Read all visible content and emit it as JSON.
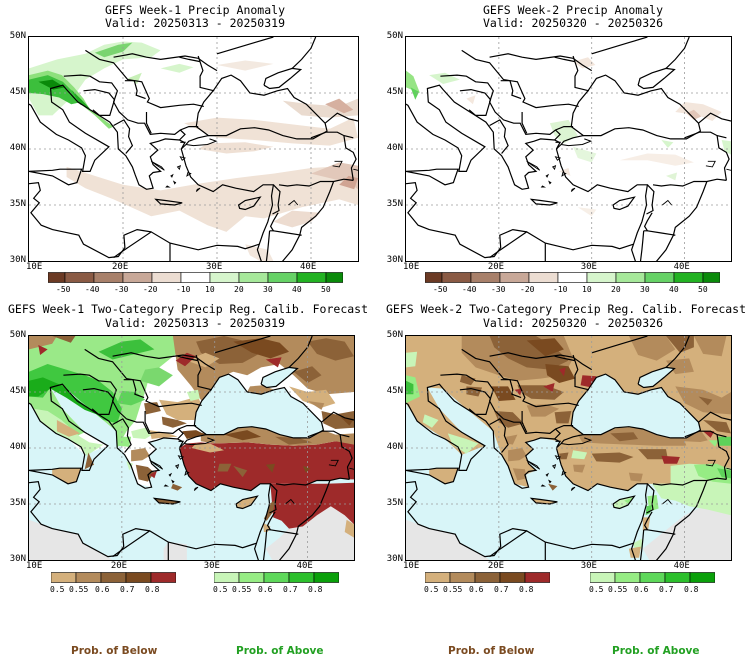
{
  "panels": [
    {
      "id": "p1",
      "title": "GEFS Week-1 Precip Anomaly",
      "valid": "Valid: 20250313 - 20250319"
    },
    {
      "id": "p2",
      "title": "GEFS Week-2 Precip Anomaly",
      "valid": "Valid: 20250320 - 20250326"
    },
    {
      "id": "p3",
      "title": "GEFS Week-1 Two-Category Precip Reg. Calib. Forecast",
      "valid": "Valid: 20250313 - 20250319"
    },
    {
      "id": "p4",
      "title": "GEFS Week-2 Two-Category Precip Reg. Calib. Forecast",
      "valid": "Valid: 20250320 - 20250326"
    }
  ],
  "axes": {
    "lat_labels": [
      "50N",
      "45N",
      "40N",
      "35N",
      "30N"
    ],
    "lon_labels": [
      "10E",
      "20E",
      "30E",
      "40E"
    ]
  },
  "anomaly_colorbar": {
    "labels": [
      "-50",
      "-40",
      "-30",
      "-20",
      "-10",
      "10",
      "20",
      "30",
      "40",
      "50"
    ],
    "colors": [
      "#6b3a24",
      "#8a5a44",
      "#a8806a",
      "#c8a898",
      "#ecddd2",
      "#ffffff",
      "#d6f5cc",
      "#a6e89a",
      "#66d266",
      "#22b222",
      "#0a8a0a"
    ]
  },
  "prob_below_colorbar": {
    "labels": [
      "0.5",
      "0.55",
      "0.6",
      "0.7",
      "0.8"
    ],
    "colors": [
      "#d4b07c",
      "#b38b5c",
      "#8c6238",
      "#7a4a20",
      "#9e2a2a"
    ]
  },
  "prob_above_colorbar": {
    "labels": [
      "0.5",
      "0.55",
      "0.6",
      "0.7",
      "0.8"
    ],
    "colors": [
      "#c8f5b8",
      "#96ec84",
      "#5ed85a",
      "#2cc02c",
      "#0aa00a"
    ]
  },
  "footer": {
    "below_label": "Prob. of Below",
    "above_label": "Prob. of Above",
    "below_color": "#7a4a20",
    "above_color": "#22a022"
  }
}
